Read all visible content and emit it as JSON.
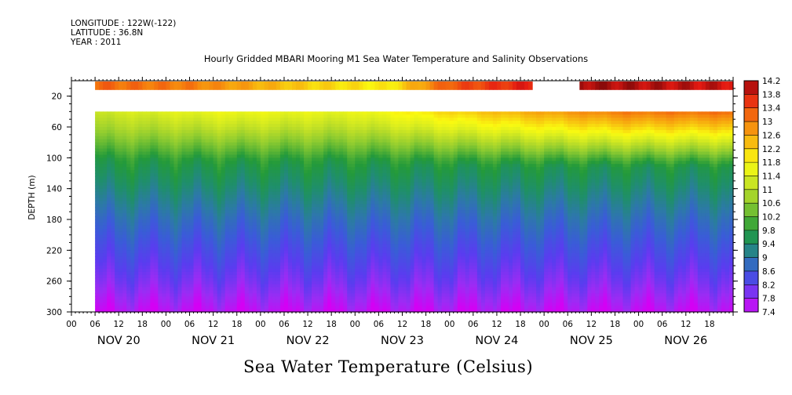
{
  "header": {
    "longitude": "LONGITUDE : 122W(-122)",
    "latitude": "LATITUDE : 36.8N",
    "year": "YEAR : 2011"
  },
  "footer": {
    "title": "Sea Water Temperature (Celsius)"
  },
  "chart_data": {
    "type": "heatmap",
    "title": "Hourly Gridded MBARI Mooring M1 Sea Water Temperature and Salinity Observations",
    "ylabel": "DEPTH (m)",
    "xlabel": "",
    "ylim": [
      300,
      0
    ],
    "y_ticks": [
      20,
      60,
      100,
      140,
      180,
      220,
      260,
      300
    ],
    "x_range_hours": [
      0,
      168
    ],
    "data_start_hour": 6,
    "hour_ticks": [
      "00",
      "06",
      "12",
      "18",
      "00",
      "06",
      "12",
      "18",
      "00",
      "06",
      "12",
      "18",
      "00",
      "06",
      "12",
      "18",
      "00",
      "06",
      "12",
      "18",
      "00",
      "06",
      "12",
      "18",
      "00",
      "06",
      "12",
      "18"
    ],
    "day_labels": [
      "NOV 20",
      "NOV 21",
      "NOV 22",
      "NOV 23",
      "NOV 24",
      "NOV 25",
      "NOV 26"
    ],
    "colorbar": {
      "unit": "Celsius",
      "min": 7.4,
      "max": 14.2,
      "labels": [
        "14.2",
        "13.8",
        "13.4",
        "13",
        "12.6",
        "12.2",
        "11.8",
        "11.4",
        "11",
        "10.6",
        "10.2",
        "9.8",
        "9.4",
        "9",
        "8.6",
        "8.2",
        "7.8",
        "7.4"
      ]
    },
    "surface_layer": {
      "depth_range_m": [
        1,
        12
      ],
      "gap_hours": [
        [
          117,
          129
        ]
      ],
      "profile": [
        {
          "hour": 6,
          "temp": 13.2
        },
        {
          "hour": 30,
          "temp": 13.0
        },
        {
          "hour": 60,
          "temp": 12.2
        },
        {
          "hour": 80,
          "temp": 11.9
        },
        {
          "hour": 95,
          "temp": 13.3
        },
        {
          "hour": 117,
          "temp": 13.8
        },
        {
          "hour": 129,
          "temp": 14.1
        },
        {
          "hour": 168,
          "temp": 13.9
        }
      ]
    },
    "depth_profile": [
      {
        "depth": 40,
        "temp": 11.2
      },
      {
        "depth": 60,
        "temp": 10.8
      },
      {
        "depth": 80,
        "temp": 10.3
      },
      {
        "depth": 100,
        "temp": 9.8
      },
      {
        "depth": 140,
        "temp": 9.3
      },
      {
        "depth": 180,
        "temp": 8.8
      },
      {
        "depth": 220,
        "temp": 8.4
      },
      {
        "depth": 260,
        "temp": 8.0
      },
      {
        "depth": 300,
        "temp": 7.5
      }
    ],
    "near_surface_anomaly": [
      {
        "hour": 6,
        "delta": 0.0
      },
      {
        "hour": 40,
        "delta": 0.4
      },
      {
        "hour": 70,
        "delta": 0.3
      },
      {
        "hour": 100,
        "delta": 1.0
      },
      {
        "hour": 120,
        "delta": 1.4
      },
      {
        "hour": 140,
        "delta": 1.8
      },
      {
        "hour": 168,
        "delta": 1.9
      }
    ]
  }
}
